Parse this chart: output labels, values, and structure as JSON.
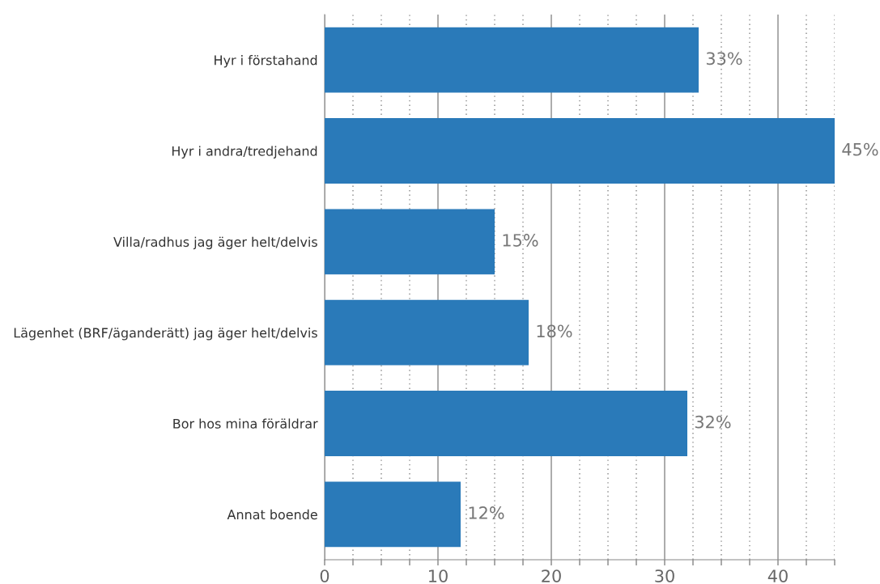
{
  "chart_data": {
    "type": "bar",
    "orientation": "horizontal",
    "categories": [
      "Hyr i förstahand",
      "Hyr i andra/tredjehand",
      "Villa/radhus jag äger helt/delvis",
      "Lägenhet (BRF/äganderätt) jag äger helt/delvis",
      "Bor hos mina föräldrar",
      "Annat boende"
    ],
    "values": [
      33,
      45,
      15,
      18,
      32,
      12
    ],
    "value_labels": [
      "33%",
      "45%",
      "15%",
      "18%",
      "32%",
      "12%"
    ],
    "color": "#2a7ab9",
    "xlim": [
      0,
      45
    ],
    "xticks": [
      0,
      {
        "value": 2.5,
        "label": null
      },
      {
        "value": 5,
        "label": null
      },
      {
        "value": 7.5,
        "label": null
      },
      10,
      {
        "value": 12.5,
        "label": null
      },
      {
        "value": 15,
        "label": null
      },
      {
        "value": 17.5,
        "label": null
      },
      20,
      {
        "value": 22.5,
        "label": null
      },
      {
        "value": 25,
        "label": null
      },
      {
        "value": 27.5,
        "label": null
      },
      30,
      {
        "value": 32.5,
        "label": null
      },
      {
        "value": 35,
        "label": null
      },
      {
        "value": 37.5,
        "label": null
      },
      40,
      {
        "value": 42.5,
        "label": null
      },
      {
        "value": 45,
        "label": null
      }
    ],
    "grid": "x"
  }
}
